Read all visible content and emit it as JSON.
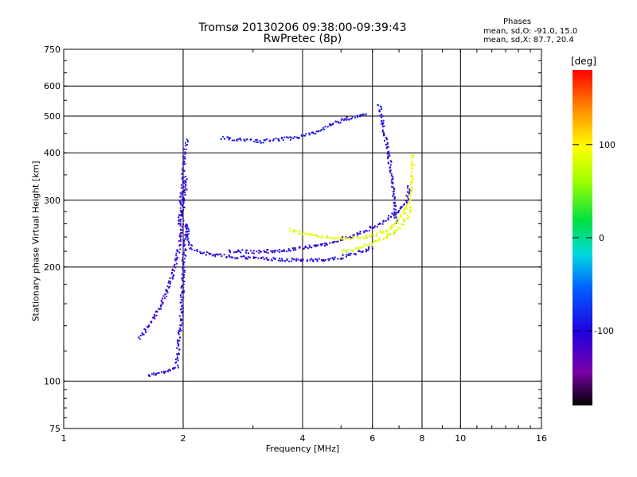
{
  "title_line1": "Tromsø 20130206 09:38:00-09:39:43",
  "title_line2": "RwPretec (8p)",
  "phases": {
    "heading": "Phases",
    "o_line": "mean, sd,O: -91.0, 15.0",
    "x_line": "mean, sd,X:  87.7, 20.4"
  },
  "colorbar": {
    "unit": "[deg]",
    "ticks": [
      "100",
      "0",
      "-100"
    ],
    "range": [
      -180,
      180
    ]
  },
  "chart_data": {
    "type": "scatter",
    "xlabel": "Frequency [MHz]",
    "ylabel": "Stationary phase Virtual Height [km]",
    "xscale": "log",
    "yscale": "log",
    "xlim": [
      1,
      16
    ],
    "ylim": [
      75,
      750
    ],
    "xticks": [
      1,
      2,
      4,
      6,
      8,
      10,
      16
    ],
    "xtick_labels": [
      "1",
      "2",
      "4",
      "6",
      "8",
      "10",
      "16"
    ],
    "yticks": [
      75,
      100,
      200,
      300,
      400,
      500,
      600,
      750
    ],
    "ytick_labels": [
      "75",
      "100",
      "200",
      "300",
      "400",
      "500",
      "600",
      "750"
    ],
    "grid": true,
    "traces": [
      {
        "phase_deg": -100,
        "points": [
          [
            1.63,
            104
          ],
          [
            1.7,
            105
          ],
          [
            1.78,
            106
          ],
          [
            1.84,
            107
          ],
          [
            1.92,
            110
          ],
          [
            1.97,
            150
          ],
          [
            2.0,
            210
          ],
          [
            2.03,
            260
          ],
          [
            2.08,
            225
          ],
          [
            2.25,
            218
          ],
          [
            2.6,
            214
          ],
          [
            3.0,
            212
          ],
          [
            3.5,
            210
          ],
          [
            4.0,
            209
          ],
          [
            4.5,
            210
          ],
          [
            5.0,
            213
          ],
          [
            5.4,
            218
          ],
          [
            5.8,
            224
          ],
          [
            6.0,
            227
          ]
        ]
      },
      {
        "phase_deg": -110,
        "points": [
          [
            1.55,
            130
          ],
          [
            1.62,
            140
          ],
          [
            1.7,
            150
          ],
          [
            1.78,
            165
          ],
          [
            1.85,
            185
          ],
          [
            1.92,
            210
          ],
          [
            1.97,
            250
          ],
          [
            2.0,
            300
          ],
          [
            2.03,
            350
          ]
        ]
      },
      {
        "phase_deg": -100,
        "points": [
          [
            1.95,
            260
          ],
          [
            1.97,
            300
          ],
          [
            1.99,
            340
          ],
          [
            2.0,
            380
          ],
          [
            2.02,
            420
          ],
          [
            2.04,
            440
          ]
        ]
      },
      {
        "phase_deg": -95,
        "points": [
          [
            2.5,
            440
          ],
          [
            2.8,
            435
          ],
          [
            3.1,
            430
          ],
          [
            3.4,
            435
          ],
          [
            3.8,
            440
          ],
          [
            4.2,
            450
          ],
          [
            4.6,
            470
          ],
          [
            5.0,
            490
          ],
          [
            5.4,
            500
          ],
          [
            5.8,
            510
          ]
        ]
      },
      {
        "phase_deg": -105,
        "points": [
          [
            2.6,
            222
          ],
          [
            3.0,
            220
          ],
          [
            3.5,
            222
          ],
          [
            4.0,
            226
          ],
          [
            4.5,
            230
          ],
          [
            5.0,
            238
          ],
          [
            5.5,
            246
          ],
          [
            6.0,
            256
          ],
          [
            6.5,
            268
          ],
          [
            7.0,
            285
          ],
          [
            7.3,
            300
          ],
          [
            7.4,
            330
          ]
        ]
      },
      {
        "phase_deg": -100,
        "points": [
          [
            6.2,
            540
          ],
          [
            6.3,
            500
          ],
          [
            6.4,
            460
          ],
          [
            6.5,
            420
          ],
          [
            6.6,
            380
          ],
          [
            6.7,
            340
          ],
          [
            6.8,
            300
          ],
          [
            6.85,
            260
          ]
        ]
      },
      {
        "phase_deg": 90,
        "points": [
          [
            3.7,
            252
          ],
          [
            4.0,
            246
          ],
          [
            4.5,
            241
          ],
          [
            5.0,
            238
          ],
          [
            5.5,
            240
          ],
          [
            6.0,
            243
          ],
          [
            6.3,
            248
          ],
          [
            6.6,
            255
          ],
          [
            6.9,
            265
          ],
          [
            7.2,
            280
          ],
          [
            7.4,
            300
          ],
          [
            7.5,
            330
          ],
          [
            7.55,
            370
          ],
          [
            7.55,
            400
          ]
        ]
      },
      {
        "phase_deg": 80,
        "points": [
          [
            5.0,
            220
          ],
          [
            5.5,
            225
          ],
          [
            6.0,
            232
          ],
          [
            6.5,
            242
          ],
          [
            7.0,
            255
          ],
          [
            7.3,
            270
          ],
          [
            7.5,
            290
          ]
        ]
      }
    ]
  }
}
